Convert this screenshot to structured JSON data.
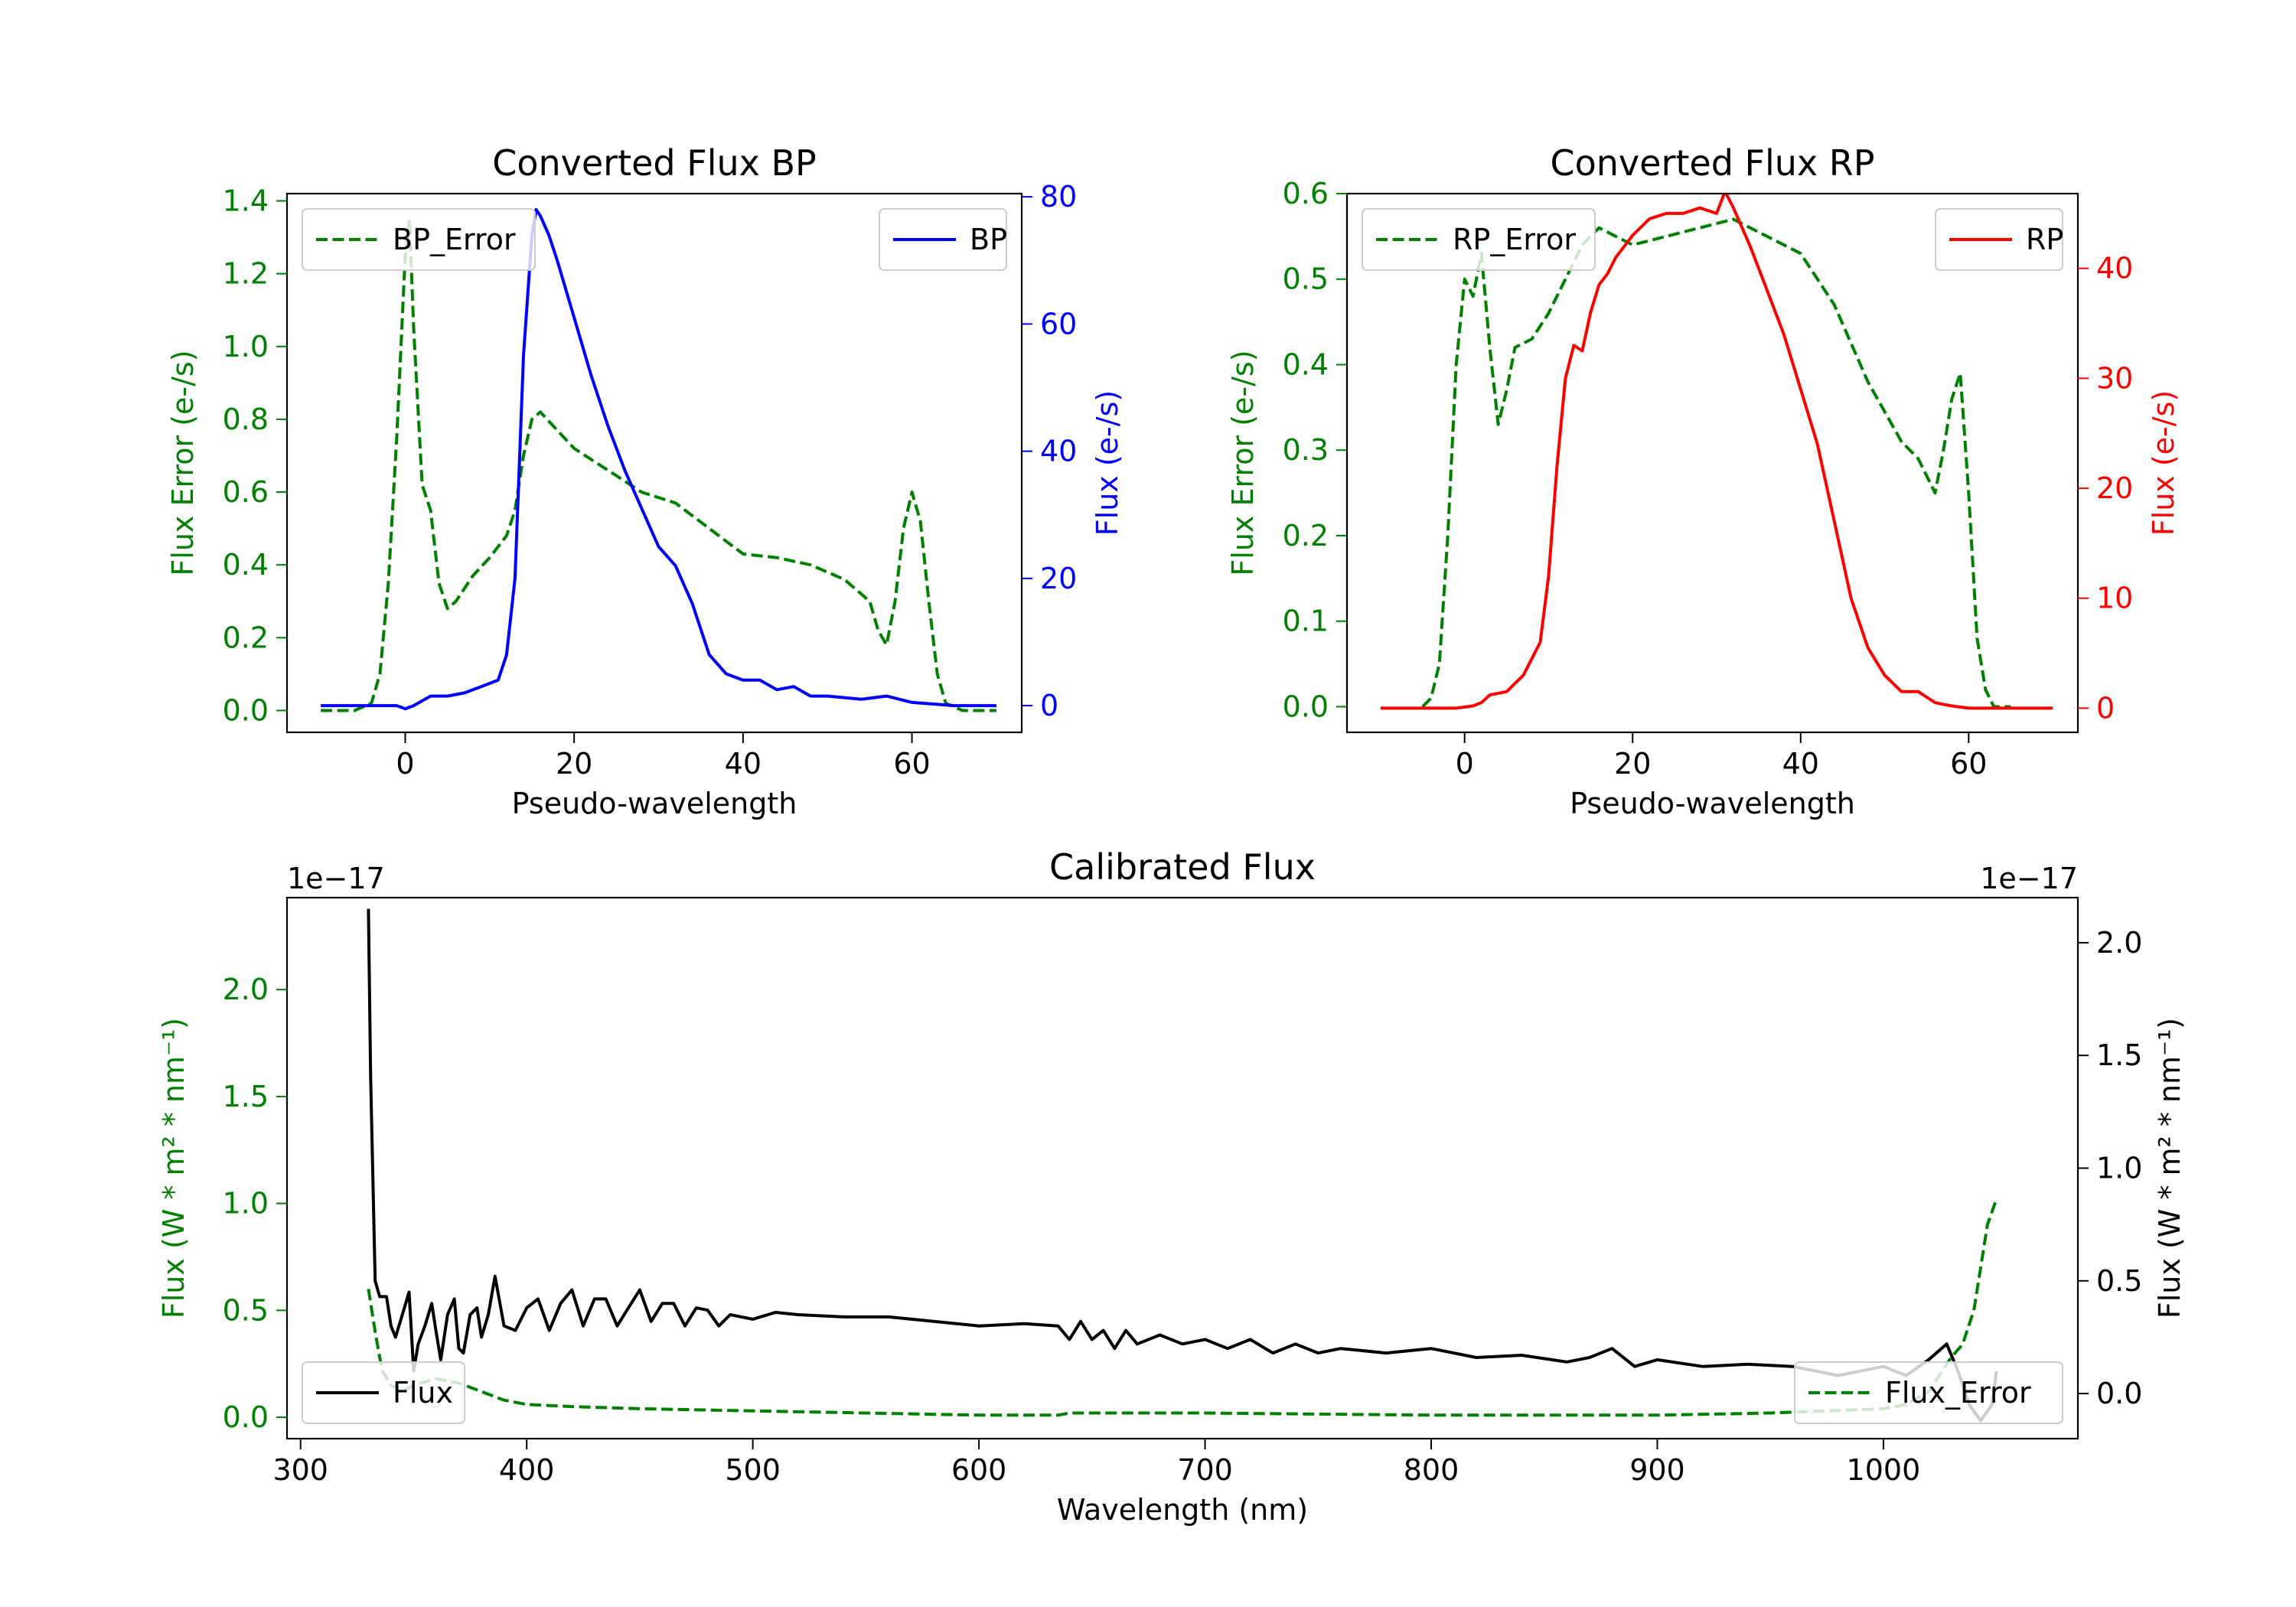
{
  "colors": {
    "green": "#008000",
    "blue": "#0000ff",
    "red": "#ff0000",
    "black": "#000000"
  },
  "chart_data": [
    {
      "id": "bp",
      "type": "line",
      "title": "Converted Flux BP",
      "xlabel": "Pseudo-wavelength",
      "ylabel_left": "Flux Error (e-/s)",
      "ylabel_right": "Flux (e-/s)",
      "xlim": [
        -14,
        73
      ],
      "ylim_left": [
        -0.06,
        1.42
      ],
      "ylim_right": [
        -4.2,
        80.5
      ],
      "xticks": [
        0,
        20,
        40,
        60
      ],
      "xtick_labels": [
        "0",
        "20",
        "40",
        "60"
      ],
      "yticks_left": [
        0.0,
        0.2,
        0.4,
        0.6,
        0.8,
        1.0,
        1.2,
        1.4
      ],
      "ytick_labels_left": [
        "0.0",
        "0.2",
        "0.4",
        "0.6",
        "0.8",
        "1.0",
        "1.2",
        "1.4"
      ],
      "yticks_right": [
        0,
        20,
        40,
        60,
        80
      ],
      "ytick_labels_right": [
        "0",
        "20",
        "40",
        "60",
        "80"
      ],
      "legend_left": {
        "label": "BP_Error",
        "position": "upper left"
      },
      "legend_right": {
        "label": "BP",
        "position": "upper right"
      },
      "series": [
        {
          "name": "BP_Error",
          "axis": "left",
          "color": "#008000",
          "dash": true,
          "x": [
            -10,
            -6,
            -4,
            -3,
            -2,
            -1,
            0,
            0.5,
            1,
            2,
            3,
            4,
            5,
            6,
            8,
            10,
            12,
            13,
            14,
            15,
            16,
            18,
            20,
            24,
            28,
            32,
            36,
            40,
            44,
            48,
            52,
            55,
            56,
            57,
            58,
            59,
            60,
            61,
            62,
            63,
            64,
            66,
            68,
            70
          ],
          "y": [
            0.0,
            0.0,
            0.02,
            0.1,
            0.35,
            0.75,
            1.25,
            1.35,
            1.05,
            0.62,
            0.55,
            0.35,
            0.28,
            0.3,
            0.37,
            0.42,
            0.48,
            0.55,
            0.7,
            0.8,
            0.82,
            0.77,
            0.72,
            0.66,
            0.6,
            0.57,
            0.5,
            0.43,
            0.42,
            0.4,
            0.36,
            0.3,
            0.22,
            0.18,
            0.3,
            0.5,
            0.6,
            0.52,
            0.3,
            0.1,
            0.02,
            0.0,
            0.0,
            0.0
          ]
        },
        {
          "name": "BP",
          "axis": "right",
          "color": "#0000ff",
          "dash": false,
          "x": [
            -10,
            -5,
            -1,
            0,
            1,
            3,
            5,
            7,
            9,
            11,
            12,
            13,
            14,
            15,
            15.5,
            16,
            17,
            18,
            20,
            22,
            24,
            26,
            28,
            30,
            32,
            34,
            36,
            38,
            40,
            42,
            44,
            46,
            48,
            50,
            54,
            57,
            60,
            65,
            70
          ],
          "y": [
            0,
            0,
            0,
            -0.5,
            0,
            1.5,
            1.5,
            2.0,
            3.0,
            4.0,
            8.0,
            20.0,
            55.0,
            74.0,
            78.0,
            77.0,
            74.0,
            70.0,
            61.0,
            52.0,
            44.0,
            37.0,
            31.0,
            25.0,
            22.0,
            16.0,
            8.0,
            5.0,
            4.0,
            4.0,
            2.5,
            3.0,
            1.5,
            1.5,
            1.0,
            1.5,
            0.5,
            0,
            0
          ]
        }
      ]
    },
    {
      "id": "rp",
      "type": "line",
      "title": "Converted Flux RP",
      "xlabel": "Pseudo-wavelength",
      "ylabel_left": "Flux Error (e-/s)",
      "ylabel_right": "Flux (e-/s)",
      "xlim": [
        -14,
        73
      ],
      "ylim_left": [
        -0.03,
        0.6
      ],
      "ylim_right": [
        -2.2,
        46.8
      ],
      "xticks": [
        0,
        20,
        40,
        60
      ],
      "xtick_labels": [
        "0",
        "20",
        "40",
        "60"
      ],
      "yticks_left": [
        0.0,
        0.1,
        0.2,
        0.3,
        0.4,
        0.5,
        0.6
      ],
      "ytick_labels_left": [
        "0.0",
        "0.1",
        "0.2",
        "0.3",
        "0.4",
        "0.5",
        "0.6"
      ],
      "yticks_right": [
        0,
        10,
        20,
        30,
        40
      ],
      "ytick_labels_right": [
        "0",
        "10",
        "20",
        "30",
        "40"
      ],
      "legend_left": {
        "label": "RP_Error",
        "position": "upper left"
      },
      "legend_right": {
        "label": "RP",
        "position": "upper right"
      },
      "series": [
        {
          "name": "RP_Error",
          "axis": "left",
          "color": "#008000",
          "dash": true,
          "x": [
            -5,
            -4,
            -3,
            -2,
            -1,
            0,
            1,
            2,
            3,
            4,
            5,
            6,
            8,
            10,
            12,
            14,
            16,
            20,
            24,
            28,
            32,
            36,
            40,
            44,
            48,
            52,
            54,
            55,
            56,
            57,
            58,
            59,
            60,
            61,
            62,
            63,
            65
          ],
          "y": [
            0.0,
            0.01,
            0.05,
            0.2,
            0.4,
            0.5,
            0.48,
            0.53,
            0.42,
            0.33,
            0.37,
            0.42,
            0.43,
            0.46,
            0.5,
            0.54,
            0.56,
            0.54,
            0.55,
            0.56,
            0.57,
            0.55,
            0.53,
            0.47,
            0.38,
            0.31,
            0.29,
            0.27,
            0.25,
            0.3,
            0.36,
            0.39,
            0.25,
            0.08,
            0.02,
            0.0,
            0.0
          ]
        },
        {
          "name": "RP",
          "axis": "right",
          "color": "#ff0000",
          "dash": false,
          "x": [
            -10,
            -4,
            -1,
            1,
            2,
            3,
            5,
            7,
            9,
            10,
            11,
            12,
            13,
            14,
            15,
            16,
            17,
            18,
            20,
            22,
            24,
            26,
            28,
            30,
            31,
            32,
            34,
            36,
            38,
            40,
            42,
            44,
            46,
            48,
            50,
            52,
            54,
            55,
            56,
            58,
            60,
            65,
            70
          ],
          "y": [
            0,
            0,
            0,
            0.2,
            0.5,
            1.2,
            1.5,
            3.0,
            6.0,
            12.0,
            22.0,
            30.0,
            33.0,
            32.5,
            36.0,
            38.5,
            39.5,
            41.0,
            43.0,
            44.5,
            45.0,
            45.0,
            45.5,
            45.0,
            47.0,
            45.5,
            42.0,
            38.0,
            34.0,
            29.0,
            24.0,
            17.0,
            10.0,
            5.5,
            3.0,
            1.5,
            1.5,
            1.0,
            0.5,
            0.2,
            0,
            0,
            0
          ]
        }
      ]
    },
    {
      "id": "calibrated",
      "type": "line",
      "title": "Calibrated Flux",
      "xlabel": "Wavelength (nm)",
      "ylabel_left": "Flux (W * m² * nm⁻¹)",
      "ylabel_right": "Flux (W * m² * nm⁻¹)",
      "offset_left": "1e−17",
      "offset_right": "1e−17",
      "xlim": [
        294,
        1086
      ],
      "ylim_left": [
        -0.1,
        2.43
      ],
      "ylim_right": [
        -0.2,
        2.2
      ],
      "xticks": [
        300,
        400,
        500,
        600,
        700,
        800,
        900,
        1000
      ],
      "xtick_labels": [
        "300",
        "400",
        "500",
        "600",
        "700",
        "800",
        "900",
        "1000"
      ],
      "yticks_left": [
        0.0,
        0.5,
        1.0,
        1.5,
        2.0
      ],
      "ytick_labels_left": [
        "0.0",
        "0.5",
        "1.0",
        "1.5",
        "2.0"
      ],
      "yticks_right": [
        0.0,
        0.5,
        1.0,
        1.5,
        2.0
      ],
      "ytick_labels_right": [
        "0.0",
        "0.5",
        "1.0",
        "1.5",
        "2.0"
      ],
      "legend_left": {
        "label": "Flux",
        "position": "lower left"
      },
      "legend_right": {
        "label": "Flux_Error",
        "position": "lower right"
      },
      "series": [
        {
          "name": "Flux",
          "axis": "right",
          "color": "#000000",
          "dash": false,
          "x": [
            330,
            331,
            333,
            335,
            338,
            340,
            342,
            345,
            348,
            350,
            352,
            355,
            358,
            360,
            362,
            365,
            368,
            370,
            372,
            375,
            378,
            380,
            383,
            386,
            390,
            395,
            400,
            405,
            410,
            415,
            420,
            425,
            430,
            435,
            440,
            445,
            450,
            455,
            460,
            465,
            470,
            475,
            480,
            485,
            490,
            500,
            510,
            520,
            540,
            560,
            580,
            600,
            620,
            635,
            640,
            645,
            650,
            655,
            660,
            665,
            670,
            680,
            690,
            700,
            710,
            720,
            730,
            740,
            750,
            760,
            780,
            800,
            820,
            840,
            860,
            870,
            880,
            890,
            900,
            920,
            940,
            960,
            980,
            1000,
            1010,
            1020,
            1028,
            1033,
            1038,
            1043,
            1048,
            1050
          ],
          "y": [
            2.15,
            1.4,
            0.5,
            0.43,
            0.43,
            0.3,
            0.25,
            0.35,
            0.45,
            0.1,
            0.22,
            0.3,
            0.4,
            0.27,
            0.15,
            0.35,
            0.42,
            0.2,
            0.18,
            0.35,
            0.38,
            0.25,
            0.35,
            0.52,
            0.3,
            0.28,
            0.38,
            0.42,
            0.28,
            0.4,
            0.46,
            0.3,
            0.42,
            0.42,
            0.3,
            0.38,
            0.46,
            0.32,
            0.4,
            0.4,
            0.3,
            0.38,
            0.37,
            0.3,
            0.35,
            0.33,
            0.36,
            0.35,
            0.34,
            0.34,
            0.32,
            0.3,
            0.31,
            0.3,
            0.24,
            0.32,
            0.24,
            0.28,
            0.2,
            0.28,
            0.22,
            0.26,
            0.22,
            0.24,
            0.2,
            0.24,
            0.18,
            0.22,
            0.18,
            0.2,
            0.18,
            0.2,
            0.16,
            0.17,
            0.14,
            0.16,
            0.2,
            0.12,
            0.15,
            0.12,
            0.13,
            0.12,
            0.08,
            0.12,
            0.08,
            0.15,
            0.22,
            0.1,
            -0.05,
            -0.12,
            -0.05,
            0.1
          ]
        },
        {
          "name": "Flux_Error",
          "axis": "left",
          "color": "#008000",
          "dash": true,
          "x": [
            330,
            333,
            336,
            340,
            345,
            350,
            360,
            370,
            380,
            390,
            400,
            420,
            450,
            500,
            550,
            600,
            635,
            640,
            700,
            800,
            900,
            950,
            1000,
            1010,
            1020,
            1025,
            1030,
            1035,
            1040,
            1043,
            1046,
            1050
          ],
          "y": [
            0.6,
            0.4,
            0.22,
            0.15,
            0.12,
            0.15,
            0.18,
            0.16,
            0.12,
            0.08,
            0.06,
            0.05,
            0.04,
            0.03,
            0.02,
            0.01,
            0.01,
            0.02,
            0.02,
            0.01,
            0.01,
            0.02,
            0.04,
            0.06,
            0.12,
            0.2,
            0.28,
            0.34,
            0.5,
            0.7,
            0.9,
            1.02
          ]
        }
      ]
    }
  ]
}
